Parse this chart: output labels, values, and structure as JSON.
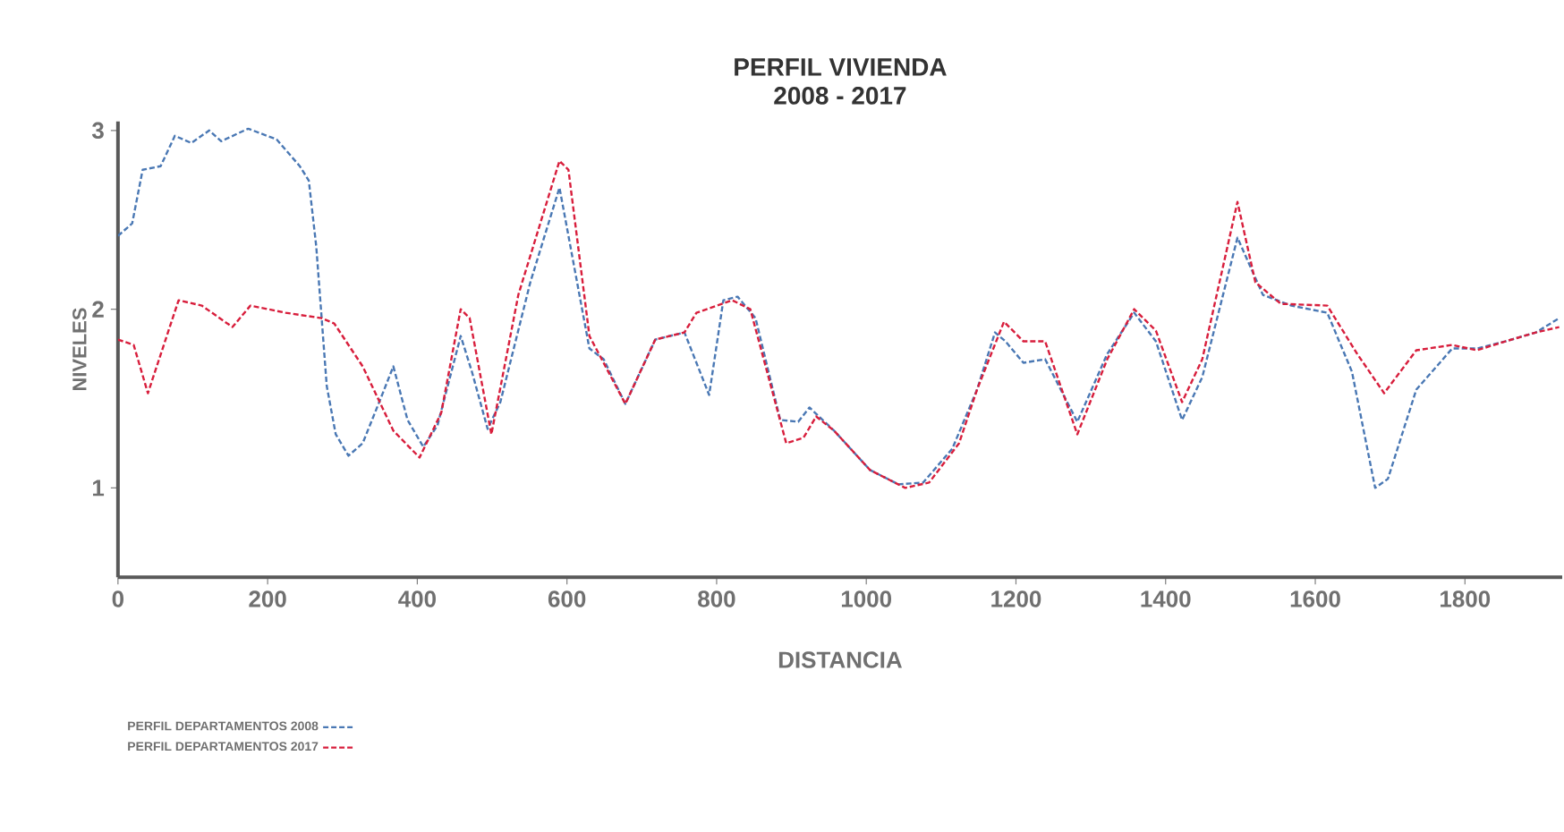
{
  "chart_data": {
    "type": "line",
    "title": "PERFIL VIVIENDA",
    "subtitle": "2008 - 2017",
    "xlabel": "DISTANCIA",
    "ylabel": "NIVELES",
    "xlim": [
      0,
      1930
    ],
    "ylim": [
      0.5,
      3.05
    ],
    "xticks": [
      0,
      200,
      400,
      600,
      800,
      1000,
      1200,
      1400,
      1600,
      1800
    ],
    "yticks": [
      1,
      2,
      3
    ],
    "grid": false,
    "legend": "bottom left",
    "line_style": "dashed",
    "marker": "none",
    "series": [
      {
        "name": "PERFIL DEPARTAMENTOS 2008",
        "color": "#4a78b4",
        "x": [
          0,
          19,
          33,
          57,
          76,
          98,
          122,
          138,
          174,
          212,
          243,
          255,
          265,
          279,
          291,
          308,
          327,
          351,
          368,
          387,
          408,
          427,
          458,
          473,
          494,
          511,
          551,
          590,
          630,
          649,
          678,
          718,
          757,
          790,
          809,
          828,
          852,
          885,
          909,
          924,
          957,
          1005,
          1043,
          1076,
          1115,
          1148,
          1172,
          1186,
          1210,
          1239,
          1282,
          1322,
          1358,
          1387,
          1422,
          1449,
          1496,
          1530,
          1568,
          1616,
          1649,
          1680,
          1697,
          1735,
          1783,
          1816,
          1854,
          1895,
          1926
        ],
        "values": [
          2.41,
          2.48,
          2.78,
          2.8,
          2.97,
          2.93,
          3.0,
          2.94,
          3.01,
          2.95,
          2.8,
          2.72,
          2.35,
          1.57,
          1.3,
          1.18,
          1.25,
          1.5,
          1.68,
          1.38,
          1.23,
          1.35,
          1.85,
          1.65,
          1.33,
          1.48,
          2.15,
          2.68,
          1.78,
          1.72,
          1.47,
          1.83,
          1.87,
          1.52,
          2.05,
          2.07,
          1.95,
          1.38,
          1.37,
          1.45,
          1.32,
          1.1,
          1.02,
          1.03,
          1.22,
          1.55,
          1.87,
          1.82,
          1.7,
          1.72,
          1.37,
          1.75,
          1.98,
          1.82,
          1.38,
          1.62,
          2.4,
          2.08,
          2.02,
          1.98,
          1.65,
          1.0,
          1.05,
          1.55,
          1.78,
          1.78,
          1.82,
          1.87,
          1.95
        ]
      },
      {
        "name": "PERFIL DEPARTAMENTOS 2017",
        "color": "#d81e3c",
        "x": [
          0,
          21,
          40,
          81,
          112,
          153,
          177,
          224,
          272,
          289,
          327,
          368,
          403,
          432,
          458,
          470,
          499,
          535,
          590,
          602,
          630,
          678,
          718,
          757,
          773,
          821,
          845,
          893,
          916,
          933,
          957,
          1005,
          1052,
          1084,
          1124,
          1148,
          1184,
          1210,
          1239,
          1282,
          1322,
          1358,
          1387,
          1422,
          1449,
          1496,
          1520,
          1554,
          1616,
          1656,
          1692,
          1735,
          1783,
          1816,
          1854,
          1895,
          1926
        ],
        "values": [
          1.83,
          1.8,
          1.53,
          2.05,
          2.02,
          1.9,
          2.02,
          1.98,
          1.95,
          1.92,
          1.68,
          1.32,
          1.17,
          1.42,
          2.0,
          1.95,
          1.3,
          2.08,
          2.83,
          2.78,
          1.85,
          1.47,
          1.83,
          1.87,
          1.98,
          2.05,
          2.0,
          1.25,
          1.28,
          1.4,
          1.32,
          1.1,
          1.0,
          1.03,
          1.25,
          1.55,
          1.93,
          1.82,
          1.82,
          1.3,
          1.72,
          2.0,
          1.88,
          1.48,
          1.72,
          2.6,
          2.15,
          2.03,
          2.02,
          1.75,
          1.53,
          1.77,
          1.8,
          1.77,
          1.82,
          1.87,
          1.9
        ]
      }
    ]
  }
}
